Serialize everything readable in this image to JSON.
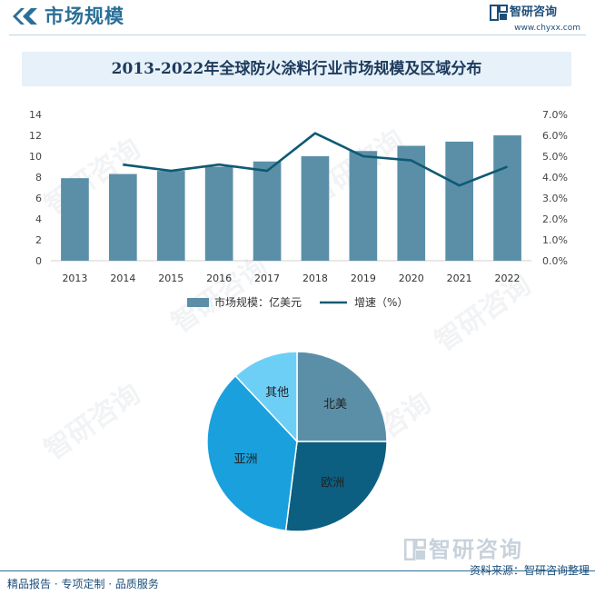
{
  "header": {
    "title": "市场规模",
    "brand_name": "智研咨询",
    "brand_url": "www.chyxx.com"
  },
  "chart_title": "2013-2022年全球防火涂料行业市场规模及区域分布",
  "footer": {
    "left": "精品报告 · 专项定制 · 品质服务",
    "right": "资料来源：智研咨询整理",
    "brand_big": "智研咨询"
  },
  "colors": {
    "accent": "#2a6f97",
    "bar": "#5b8fa8",
    "line": "#0e5a73",
    "title_band": "#e6f1f9"
  },
  "chart_data": [
    {
      "type": "bar",
      "categories": [
        "2013",
        "2014",
        "2015",
        "2016",
        "2017",
        "2018",
        "2019",
        "2020",
        "2021",
        "2022"
      ],
      "series": [
        {
          "name": "市场规模：亿美元",
          "type": "bar",
          "axis": "left",
          "values": [
            7.9,
            8.3,
            8.6,
            9.0,
            9.5,
            10.0,
            10.5,
            11.0,
            11.4,
            12.0
          ]
        },
        {
          "name": "增速（%）",
          "type": "line",
          "axis": "right",
          "values": [
            null,
            4.6,
            4.3,
            4.6,
            4.3,
            6.1,
            5.0,
            4.8,
            3.6,
            4.5
          ]
        }
      ],
      "y_left": {
        "ylim": [
          0,
          14
        ],
        "ticks": [
          "0",
          "2",
          "4",
          "6",
          "8",
          "10",
          "12",
          "14"
        ]
      },
      "y_right": {
        "ylim": [
          0,
          7
        ],
        "ticks": [
          "0.0%",
          "1.0%",
          "2.0%",
          "3.0%",
          "4.0%",
          "5.0%",
          "6.0%",
          "7.0%"
        ]
      },
      "legend_position": "bottom",
      "grid": false
    },
    {
      "type": "pie",
      "labels": [
        "北美",
        "欧洲",
        "亚洲",
        "其他"
      ],
      "values": [
        25,
        27,
        36,
        12
      ],
      "colors": [
        "#5b8fa8",
        "#0c5f80",
        "#1aa0dc",
        "#6ecff6"
      ]
    }
  ]
}
